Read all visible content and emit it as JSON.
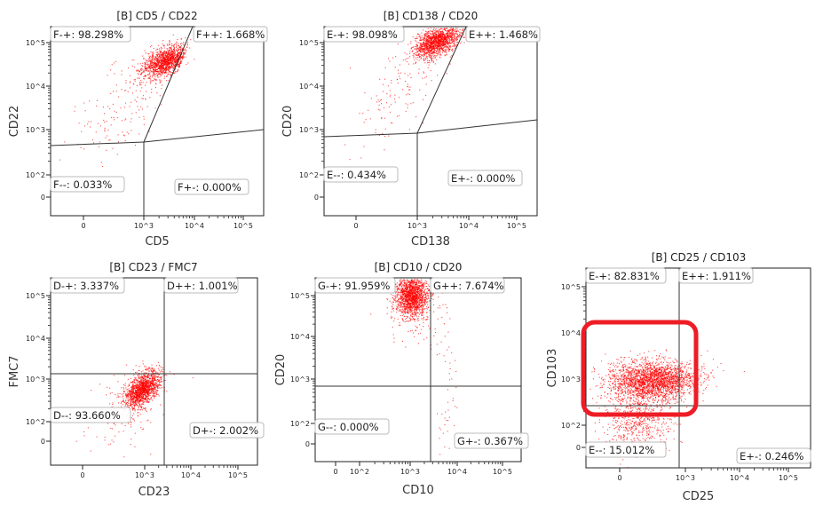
{
  "chart_data": [
    {
      "type": "scatter",
      "title": "[B] CD5 / CD22",
      "xlabel": "CD5",
      "ylabel": "CD22",
      "x_ticks": [
        "0",
        "10^3",
        "10^4",
        "10^5"
      ],
      "y_ticks": [
        "10^5",
        "10^4",
        "10^3",
        "10^2",
        "0"
      ],
      "gates": [
        {
          "gate": "F-+",
          "percent": "98.298%"
        },
        {
          "gate": "F++",
          "percent": "1.668%"
        },
        {
          "gate": "F--",
          "percent": "0.033%"
        },
        {
          "gate": "F+-",
          "percent": "0.000%"
        }
      ]
    },
    {
      "type": "scatter",
      "title": "[B] CD138 / CD20",
      "xlabel": "CD138",
      "ylabel": "CD20",
      "x_ticks": [
        "0",
        "10^3",
        "10^4",
        "10^5"
      ],
      "y_ticks": [
        "10^5",
        "10^4",
        "10^3",
        "10^2",
        "0"
      ],
      "gates": [
        {
          "gate": "E-+",
          "percent": "98.098%"
        },
        {
          "gate": "E++",
          "percent": "1.468%"
        },
        {
          "gate": "E--",
          "percent": "0.434%"
        },
        {
          "gate": "E+-",
          "percent": "0.000%"
        }
      ]
    },
    {
      "type": "scatter",
      "title": "[B] CD23 / FMC7",
      "xlabel": "CD23",
      "ylabel": "FMC7",
      "x_ticks": [
        "0",
        "10^3",
        "10^4",
        "10^5"
      ],
      "y_ticks": [
        "10^5",
        "10^4",
        "10^3",
        "10^2",
        "0"
      ],
      "gates": [
        {
          "gate": "D-+",
          "percent": "3.337%"
        },
        {
          "gate": "D++",
          "percent": "1.001%"
        },
        {
          "gate": "D--",
          "percent": "93.660%"
        },
        {
          "gate": "D+-",
          "percent": "2.002%"
        }
      ]
    },
    {
      "type": "scatter",
      "title": "[B] CD10 / CD20",
      "xlabel": "CD10",
      "ylabel": "CD20",
      "x_ticks": [
        "0",
        "10^2",
        "10^3",
        "10^4",
        "10^5"
      ],
      "y_ticks": [
        "10^5",
        "10^4",
        "10^3",
        "10^2",
        "0"
      ],
      "gates": [
        {
          "gate": "G-+",
          "percent": "91.959%"
        },
        {
          "gate": "G++",
          "percent": "7.674%"
        },
        {
          "gate": "G--",
          "percent": "0.000%"
        },
        {
          "gate": "G+-",
          "percent": "0.367%"
        }
      ]
    },
    {
      "type": "scatter",
      "title": "[B] CD25 / CD103",
      "xlabel": "CD25",
      "ylabel": "CD103",
      "x_ticks": [
        "0",
        "10^3",
        "10^4",
        "10^5"
      ],
      "y_ticks": [
        "10^5",
        "10^4",
        "10^3",
        "10^2",
        "0"
      ],
      "gates": [
        {
          "gate": "E-+",
          "percent": "82.831%"
        },
        {
          "gate": "E++",
          "percent": "1.911%"
        },
        {
          "gate": "E--",
          "percent": "15.012%"
        },
        {
          "gate": "E+-",
          "percent": "0.246%"
        }
      ],
      "highlight": true
    }
  ],
  "colors": {
    "events": "#ff0000",
    "highlight": "#ee1c25",
    "gate_line": "#333333"
  }
}
